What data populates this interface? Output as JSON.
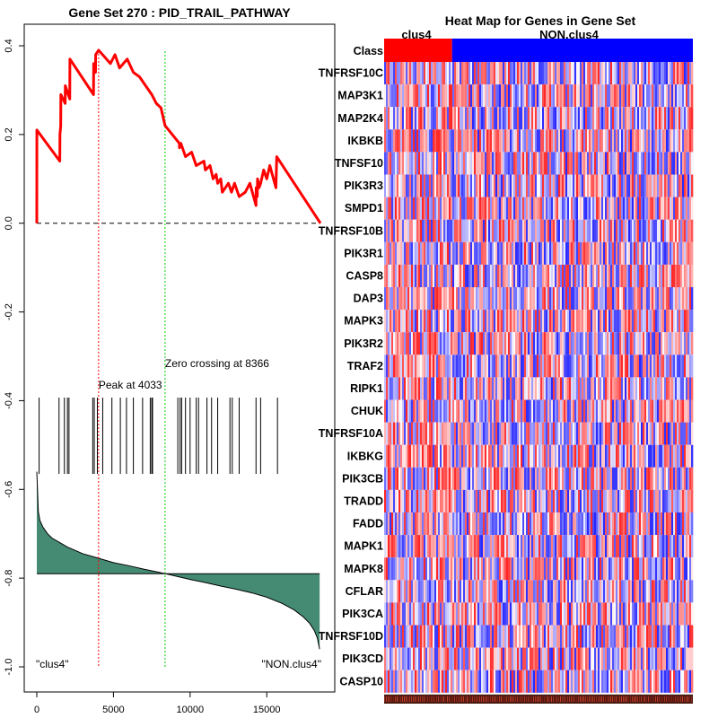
{
  "chart_data": [
    {
      "type": "line",
      "title": "Gene Set  270 : PID_TRAIL_PATHWAY",
      "xlabel": "",
      "ylabel": "",
      "xlim": [
        0,
        18500
      ],
      "ylim": [
        -1.0,
        0.42
      ],
      "xticks": [
        0,
        5000,
        10000,
        15000
      ],
      "xtick_labels": [
        "0",
        "5000",
        "10000",
        "15000"
      ],
      "yticks": [
        -1.0,
        -0.8,
        -0.6,
        -0.4,
        -0.2,
        0.0,
        0.2,
        0.4
      ],
      "ytick_labels": [
        "-1.0",
        "-0.8",
        "-0.6",
        "-0.4",
        "-0.2",
        "0.0",
        "0.2",
        "0.4"
      ],
      "series": [
        {
          "name": "running enrichment score",
          "color": "#ff0000",
          "x": [
            0,
            5,
            1500,
            1510,
            1560,
            1570,
            1850,
            1860,
            2150,
            2160,
            3700,
            3710,
            3830,
            3840,
            4033,
            4800,
            5100,
            5400,
            5900,
            6300,
            6700,
            7100,
            7500,
            7800,
            8100,
            8366,
            9300,
            9310,
            9400,
            9700,
            10100,
            10400,
            10900,
            11000,
            11300,
            11500,
            11700,
            11800,
            12000,
            12100,
            12300,
            12500,
            12700,
            12900,
            13200,
            13600,
            13900,
            14300,
            14310,
            14380,
            14400,
            14500,
            14600,
            14800,
            15000,
            15200,
            15600,
            15650,
            18500
          ],
          "y": [
            0.0,
            0.21,
            0.14,
            0.2,
            0.22,
            0.29,
            0.27,
            0.31,
            0.28,
            0.37,
            0.29,
            0.36,
            0.34,
            0.38,
            0.39,
            0.36,
            0.38,
            0.35,
            0.37,
            0.34,
            0.33,
            0.31,
            0.29,
            0.27,
            0.26,
            0.22,
            0.18,
            0.17,
            0.18,
            0.15,
            0.16,
            0.13,
            0.14,
            0.12,
            0.13,
            0.1,
            0.11,
            0.09,
            0.1,
            0.07,
            0.08,
            0.09,
            0.07,
            0.09,
            0.06,
            0.07,
            0.09,
            0.04,
            0.08,
            0.06,
            0.1,
            0.08,
            0.09,
            0.12,
            0.1,
            0.13,
            0.08,
            0.15,
            0.0
          ]
        }
      ],
      "hit_positions": [
        150,
        1450,
        1800,
        2000,
        2100,
        3650,
        3750,
        3950,
        4300,
        4900,
        5450,
        5850,
        6300,
        6900,
        7400,
        7500,
        7550,
        9200,
        9350,
        9450,
        9700,
        10000,
        10400,
        10550,
        11100,
        11400,
        11800,
        12600,
        12750,
        13200,
        14300,
        14600,
        15700
      ],
      "ranked_metric": {
        "x": [
          0,
          100,
          200,
          400,
          700,
          1000,
          1500,
          2000,
          3000,
          4000,
          5000,
          6000,
          7000,
          8000,
          8366,
          9000,
          10000,
          11000,
          12000,
          13000,
          14000,
          15000,
          16000,
          16800,
          17400,
          17800,
          18100,
          18300,
          18450
        ],
        "y": [
          -0.56,
          -0.65,
          -0.67,
          -0.685,
          -0.7,
          -0.71,
          -0.72,
          -0.73,
          -0.745,
          -0.755,
          -0.765,
          -0.772,
          -0.78,
          -0.787,
          -0.79,
          -0.795,
          -0.803,
          -0.81,
          -0.818,
          -0.825,
          -0.833,
          -0.843,
          -0.857,
          -0.872,
          -0.888,
          -0.902,
          -0.918,
          -0.935,
          -0.96
        ],
        "baseline": -0.79,
        "color": "#458b74"
      },
      "peak": {
        "x": 4033,
        "label": "Peak at 4033",
        "color": "#ff0000"
      },
      "zero_crossing": {
        "x": 8366,
        "label": "Zero crossing at 8366",
        "color": "#00cc00"
      },
      "corner_labels": {
        "left": "\"clus4\"",
        "right": "\"NON.clus4\""
      }
    },
    {
      "type": "heatmap",
      "title": "Heat Map for Genes in Gene Set",
      "class_row_label": "Class",
      "classes": [
        {
          "name": "clus4",
          "color": "#ff0000",
          "fraction": 0.22
        },
        {
          "name": "NON.clus4",
          "color": "#0000ff",
          "fraction": 0.78
        }
      ],
      "genes": [
        "TNFRSF10C",
        "MAP3K1",
        "MAP2K4",
        "IKBKB",
        "TNFSF10",
        "PIK3R3",
        "SMPD1",
        "TNFRSF10B",
        "PIK3R1",
        "CASP8",
        "DAP3",
        "MAPK3",
        "PIK3R2",
        "TRAF2",
        "RIPK1",
        "CHUK",
        "TNFRSF10A",
        "IKBKG",
        "PIK3CB",
        "TRADD",
        "FADD",
        "MAPK1",
        "MAPK8",
        "CFLAR",
        "PIK3CA",
        "TNFRSF10D",
        "PIK3CD",
        "CASP10"
      ],
      "colorscale": {
        "low": "#0000ff",
        "mid": "#ffffff",
        "high": "#ff0000"
      }
    }
  ]
}
